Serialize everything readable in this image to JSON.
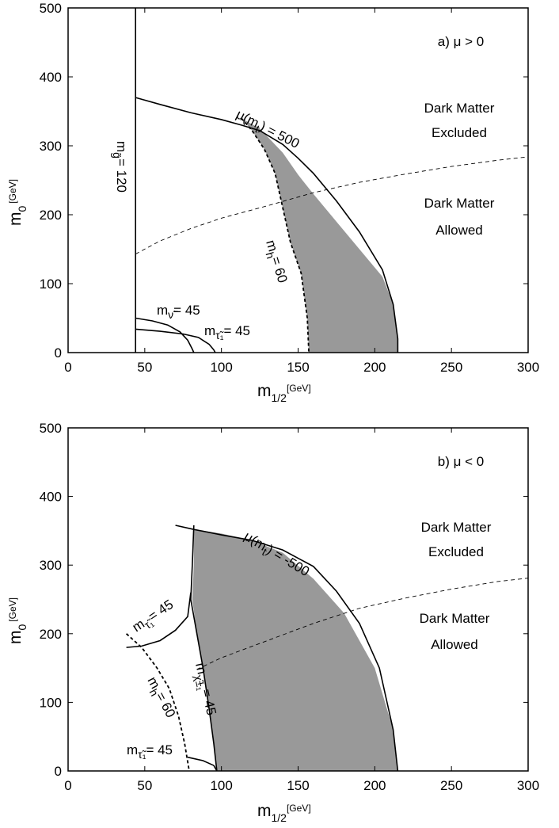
{
  "chart_data": [
    {
      "type": "line",
      "panel_label": "a)  μ > 0",
      "xlabel": "m",
      "xlabel_sub": "1/2",
      "xlabel_unit": "[GeV]",
      "ylabel": "m",
      "ylabel_sub": "0",
      "ylabel_unit": "[GeV]",
      "xlim": [
        0,
        300
      ],
      "ylim": [
        0,
        500
      ],
      "x_ticks": [
        0,
        50,
        100,
        150,
        200,
        250,
        300
      ],
      "y_ticks": [
        0,
        100,
        200,
        300,
        400,
        500
      ],
      "regions": [
        {
          "name": "dark-matter-excluded",
          "text": [
            "Dark Matter",
            "Excluded"
          ]
        },
        {
          "name": "dark-matter-allowed",
          "text": [
            "Dark Matter",
            "Allowed"
          ]
        }
      ],
      "shaded_region": {
        "fill": "#999999",
        "points": [
          [
            113,
            340
          ],
          [
            125,
            325
          ],
          [
            140,
            290
          ],
          [
            150,
            258
          ],
          [
            160,
            230
          ],
          [
            175,
            190
          ],
          [
            190,
            150
          ],
          [
            205,
            110
          ],
          [
            212,
            70
          ],
          [
            215,
            20
          ],
          [
            215,
            0
          ],
          [
            157,
            0
          ],
          [
            156,
            50
          ],
          [
            152,
            115
          ],
          [
            145,
            160
          ],
          [
            140,
            210
          ],
          [
            135,
            260
          ],
          [
            128,
            295
          ],
          [
            120,
            322
          ],
          [
            113,
            340
          ]
        ]
      },
      "series": [
        {
          "name": "mu-contour",
          "style": "solid",
          "points": [
            [
              44,
              370
            ],
            [
              60,
              360
            ],
            [
              80,
              348
            ],
            [
              100,
              338
            ],
            [
              113,
              330
            ],
            [
              125,
              322
            ],
            [
              140,
              302
            ],
            [
              150,
              282
            ],
            [
              160,
              260
            ],
            [
              175,
              220
            ],
            [
              190,
              175
            ],
            [
              205,
              120
            ],
            [
              212,
              70
            ],
            [
              215,
              20
            ],
            [
              215,
              0
            ]
          ]
        },
        {
          "name": "higgs-mass-contour",
          "style": "dashed",
          "points": [
            [
              113,
              340
            ],
            [
              120,
              322
            ],
            [
              128,
              295
            ],
            [
              135,
              260
            ],
            [
              140,
              210
            ],
            [
              145,
              160
            ],
            [
              152,
              115
            ],
            [
              156,
              50
            ],
            [
              157,
              0
            ]
          ]
        },
        {
          "name": "gluino-mass-line",
          "style": "solid",
          "points": [
            [
              44,
              0
            ],
            [
              44,
              500
            ]
          ]
        },
        {
          "name": "sneutrino-mass-contour",
          "style": "solid",
          "points": [
            [
              44,
              50
            ],
            [
              55,
              46
            ],
            [
              65,
              40
            ],
            [
              73,
              30
            ],
            [
              78,
              18
            ],
            [
              81,
              5
            ],
            [
              82,
              0
            ]
          ]
        },
        {
          "name": "stau-mass-contour",
          "style": "solid",
          "points": [
            [
              44,
              34
            ],
            [
              60,
              31
            ],
            [
              75,
              27
            ],
            [
              85,
              22
            ],
            [
              92,
              12
            ],
            [
              95,
              4
            ],
            [
              96,
              0
            ]
          ]
        },
        {
          "name": "dark-matter-boundary",
          "style": "thin-dashed",
          "points": [
            [
              44,
              143
            ],
            [
              60,
              162
            ],
            [
              80,
              180
            ],
            [
              100,
              195
            ],
            [
              130,
              213
            ],
            [
              160,
              232
            ],
            [
              190,
              247
            ],
            [
              220,
              259
            ],
            [
              250,
              270
            ],
            [
              280,
              279
            ],
            [
              300,
              284
            ]
          ]
        }
      ],
      "annotations": [
        {
          "name": "mu-label",
          "text": "μ(m",
          "sub": "t",
          "tail": ") = 500"
        },
        {
          "name": "higgs-label",
          "text": "m",
          "sub": "h",
          "tail": "= 60"
        },
        {
          "name": "gluino-label",
          "text": "m",
          "sub": "g̃",
          "tail": "= 120"
        },
        {
          "name": "sneutrino-label",
          "text": "m",
          "sub": "ν̃",
          "tail": "= 45"
        },
        {
          "name": "stau-label",
          "text": "m",
          "sub": "τ̃₁",
          "tail": "= 45"
        }
      ]
    },
    {
      "type": "line",
      "panel_label": "b)  μ < 0",
      "xlabel": "m",
      "xlabel_sub": "1/2",
      "xlabel_unit": "[GeV]",
      "ylabel": "m",
      "ylabel_sub": "0",
      "ylabel_unit": "[GeV]",
      "xlim": [
        0,
        300
      ],
      "ylim": [
        0,
        500
      ],
      "x_ticks": [
        0,
        50,
        100,
        150,
        200,
        250,
        300
      ],
      "y_ticks": [
        0,
        100,
        200,
        300,
        400,
        500
      ],
      "regions": [
        {
          "name": "dark-matter-excluded",
          "text": [
            "Dark Matter",
            "Excluded"
          ]
        },
        {
          "name": "dark-matter-allowed",
          "text": [
            "Dark Matter",
            "Allowed"
          ]
        }
      ],
      "shaded_region": {
        "fill": "#999999",
        "points": [
          [
            82,
            352
          ],
          [
            100,
            346
          ],
          [
            120,
            336
          ],
          [
            140,
            318
          ],
          [
            160,
            280
          ],
          [
            180,
            230
          ],
          [
            200,
            150
          ],
          [
            212,
            60
          ],
          [
            215,
            0
          ],
          [
            97,
            0
          ],
          [
            95,
            40
          ],
          [
            92,
            90
          ],
          [
            88,
            150
          ],
          [
            84,
            200
          ],
          [
            81,
            250
          ],
          [
            82,
            300
          ],
          [
            82,
            352
          ]
        ]
      },
      "series": [
        {
          "name": "mu-contour",
          "style": "solid",
          "points": [
            [
              70,
              358
            ],
            [
              82,
              352
            ],
            [
              100,
              344
            ],
            [
              120,
              336
            ],
            [
              140,
              322
            ],
            [
              160,
              298
            ],
            [
              175,
              262
            ],
            [
              190,
              215
            ],
            [
              203,
              150
            ],
            [
              212,
              60
            ],
            [
              215,
              0
            ]
          ]
        },
        {
          "name": "chargino-mass-contour",
          "style": "solid",
          "points": [
            [
              82,
              358
            ],
            [
              81,
              300
            ],
            [
              80,
              250
            ],
            [
              84,
              200
            ],
            [
              88,
              150
            ],
            [
              92,
              90
            ],
            [
              95,
              40
            ],
            [
              97,
              0
            ]
          ]
        },
        {
          "name": "higgs-mass-contour",
          "style": "dashed",
          "points": [
            [
              38,
              200
            ],
            [
              48,
              180
            ],
            [
              58,
              150
            ],
            [
              66,
              120
            ],
            [
              72,
              80
            ],
            [
              76,
              40
            ],
            [
              79,
              0
            ]
          ]
        },
        {
          "name": "stau-upper-contour",
          "style": "solid",
          "points": [
            [
              38,
              180
            ],
            [
              48,
              182
            ],
            [
              60,
              190
            ],
            [
              70,
              205
            ],
            [
              78,
              225
            ],
            [
              80,
              260
            ]
          ]
        },
        {
          "name": "stau-lower-contour",
          "style": "solid",
          "points": [
            [
              78,
              20
            ],
            [
              88,
              15
            ],
            [
              95,
              8
            ],
            [
              97,
              0
            ]
          ]
        },
        {
          "name": "dark-matter-boundary",
          "style": "thin-dashed",
          "points": [
            [
              84,
              148
            ],
            [
              100,
              165
            ],
            [
              130,
              190
            ],
            [
              160,
              215
            ],
            [
              190,
              237
            ],
            [
              220,
              252
            ],
            [
              250,
              265
            ],
            [
              280,
              276
            ],
            [
              300,
              281
            ]
          ]
        }
      ],
      "annotations": [
        {
          "name": "mu-label",
          "text": "μ(m",
          "sub": "t",
          "tail": ") = -500"
        },
        {
          "name": "higgs-label",
          "text": "m",
          "sub": "h",
          "tail": "= 60"
        },
        {
          "name": "chargino-label",
          "text": "m",
          "sub": "χ̃±₁",
          "tail": "= 45"
        },
        {
          "name": "stau-upper-label",
          "text": "m",
          "sub": "τ̃₁",
          "tail": "= 45"
        },
        {
          "name": "stau-lower-label",
          "text": "m",
          "sub": "τ̃₁",
          "tail": "= 45"
        }
      ]
    }
  ]
}
